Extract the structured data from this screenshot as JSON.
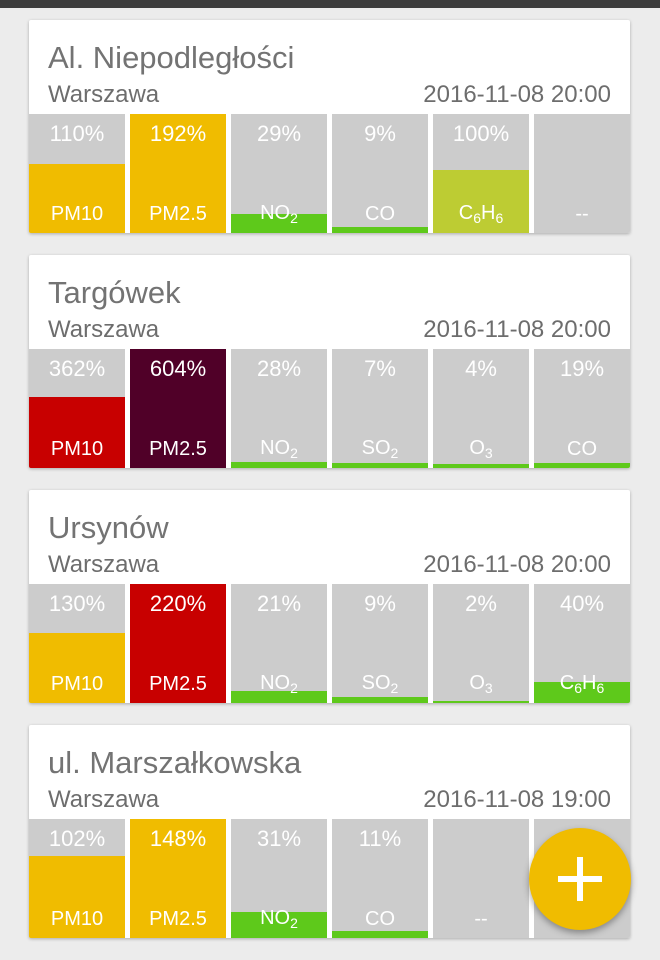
{
  "colors": {
    "tile_bg": "#cccccc",
    "good": "#5ec91b",
    "moderate": "#bdcc33",
    "bad": "#f0bc00",
    "very_bad": "#c80000",
    "extreme": "#500028",
    "fab": "#f0bc00"
  },
  "fab": {
    "icon": "plus-icon"
  },
  "stations": [
    {
      "name": "Al. Niepodległości",
      "city": "Warszawa",
      "timestamp": "2016-11-08 20:00",
      "pollutants": [
        {
          "label": "PM10",
          "pct": "110%",
          "level": 0.58,
          "color": "#f0bc00"
        },
        {
          "label": "PM2.5",
          "pct": "192%",
          "level": 1.0,
          "color": "#f0bc00"
        },
        {
          "label": "NO",
          "sub": "2",
          "pct": "29%",
          "level": 0.16,
          "color": "#5ec91b"
        },
        {
          "label": "CO",
          "pct": "9%",
          "level": 0.05,
          "color": "#5ec91b"
        },
        {
          "label": "C",
          "sub": "6",
          "label2": "H",
          "sub2": "6",
          "pct": "100%",
          "level": 0.53,
          "color": "#bdcc33"
        },
        {
          "label": "--",
          "pct": "",
          "level": 0,
          "color": "#cccccc"
        }
      ]
    },
    {
      "name": "Targówek",
      "city": "Warszawa",
      "timestamp": "2016-11-08 20:00",
      "pollutants": [
        {
          "label": "PM10",
          "pct": "362%",
          "level": 0.6,
          "color": "#c80000"
        },
        {
          "label": "PM2.5",
          "pct": "604%",
          "level": 1.0,
          "color": "#500028"
        },
        {
          "label": "NO",
          "sub": "2",
          "pct": "28%",
          "level": 0.05,
          "color": "#5ec91b"
        },
        {
          "label": "SO",
          "sub": "2",
          "pct": "7%",
          "level": 0.04,
          "color": "#5ec91b"
        },
        {
          "label": "O",
          "sub": "3",
          "pct": "4%",
          "level": 0.03,
          "color": "#5ec91b"
        },
        {
          "label": "CO",
          "pct": "19%",
          "level": 0.04,
          "color": "#5ec91b"
        }
      ]
    },
    {
      "name": "Ursynów",
      "city": "Warszawa",
      "timestamp": "2016-11-08 20:00",
      "pollutants": [
        {
          "label": "PM10",
          "pct": "130%",
          "level": 0.59,
          "color": "#f0bc00"
        },
        {
          "label": "PM2.5",
          "pct": "220%",
          "level": 1.0,
          "color": "#c80000"
        },
        {
          "label": "NO",
          "sub": "2",
          "pct": "21%",
          "level": 0.1,
          "color": "#5ec91b"
        },
        {
          "label": "SO",
          "sub": "2",
          "pct": "9%",
          "level": 0.05,
          "color": "#5ec91b"
        },
        {
          "label": "O",
          "sub": "3",
          "pct": "2%",
          "level": 0.02,
          "color": "#5ec91b"
        },
        {
          "label": "C",
          "sub": "6",
          "label2": "H",
          "sub2": "6",
          "pct": "40%",
          "level": 0.18,
          "color": "#5ec91b"
        }
      ]
    },
    {
      "name": "ul. Marszałkowska",
      "city": "Warszawa",
      "timestamp": "2016-11-08 19:00",
      "pollutants": [
        {
          "label": "PM10",
          "pct": "102%",
          "level": 0.69,
          "color": "#f0bc00"
        },
        {
          "label": "PM2.5",
          "pct": "148%",
          "level": 1.0,
          "color": "#f0bc00"
        },
        {
          "label": "NO",
          "sub": "2",
          "pct": "31%",
          "level": 0.22,
          "color": "#5ec91b"
        },
        {
          "label": "CO",
          "pct": "11%",
          "level": 0.06,
          "color": "#5ec91b"
        },
        {
          "label": "--",
          "pct": "",
          "level": 0,
          "color": "#cccccc"
        },
        {
          "label": "",
          "pct": "",
          "level": 0,
          "color": "#cccccc"
        }
      ]
    }
  ]
}
